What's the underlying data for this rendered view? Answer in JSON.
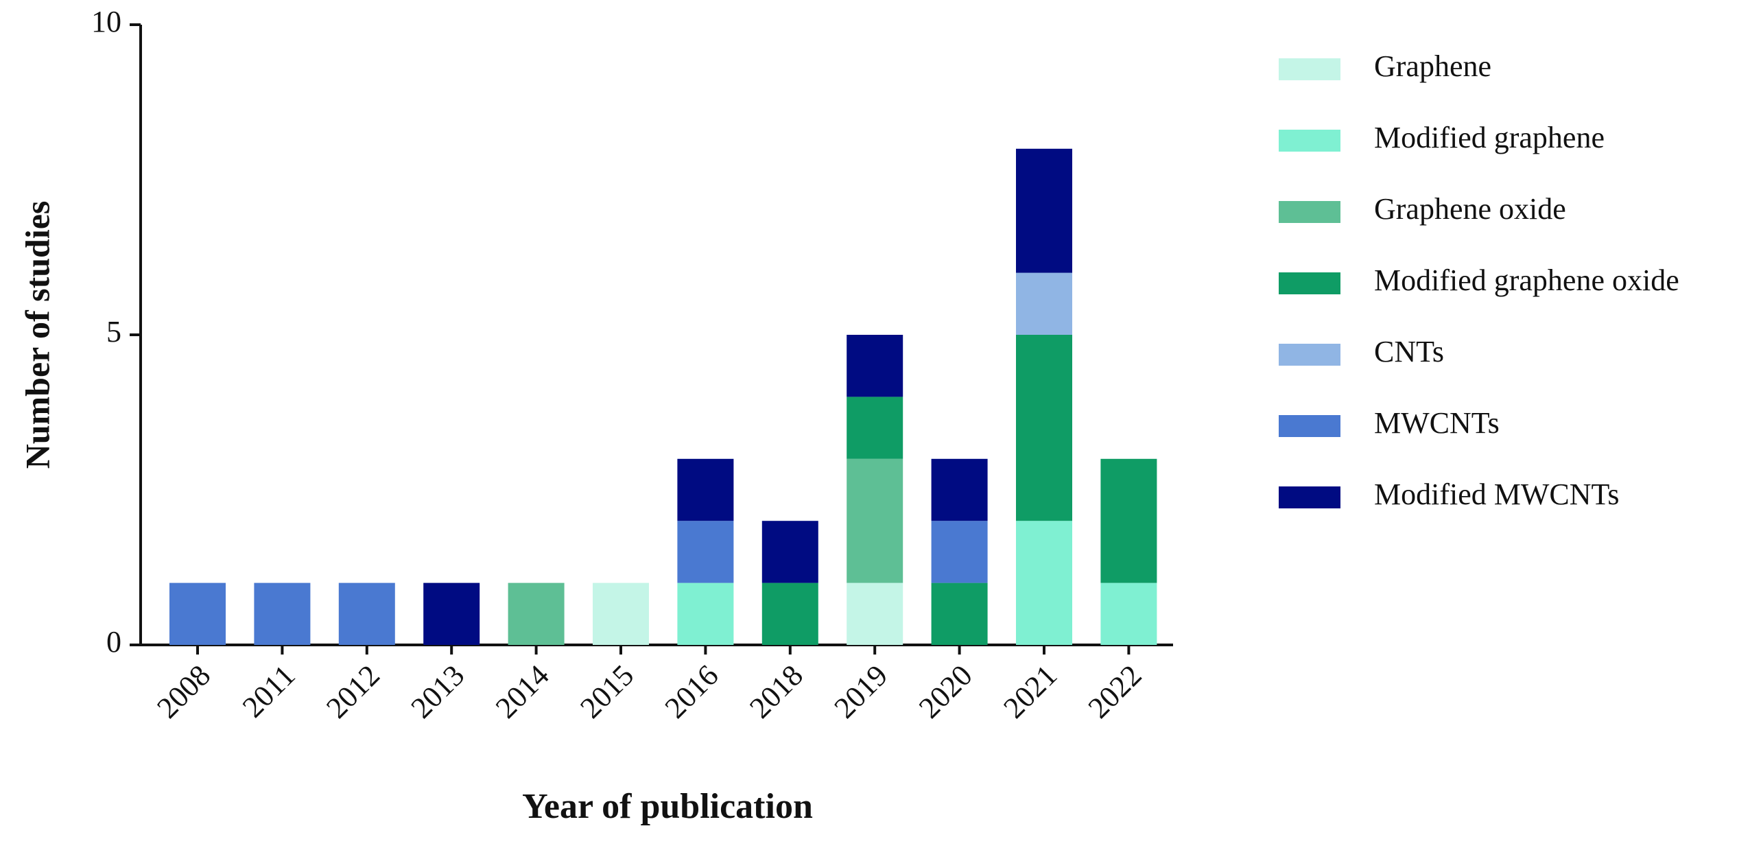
{
  "chart_data": {
    "type": "stacked_bar",
    "xlabel": "Year of publication",
    "ylabel": "Number of studies",
    "categories": [
      "2008",
      "2011",
      "2012",
      "2013",
      "2014",
      "2015",
      "2016",
      "2018",
      "2019",
      "2020",
      "2021",
      "2022"
    ],
    "series": [
      {
        "name": "Graphene",
        "color": "#c4f5e7",
        "values": [
          0,
          0,
          0,
          0,
          0,
          1,
          0,
          0,
          1,
          0,
          0,
          0
        ]
      },
      {
        "name": "Modified graphene",
        "color": "#7ff0d2",
        "values": [
          0,
          0,
          0,
          0,
          0,
          0,
          1,
          0,
          0,
          0,
          2,
          1
        ]
      },
      {
        "name": "Graphene oxide",
        "color": "#5ebf95",
        "values": [
          0,
          0,
          0,
          0,
          1,
          0,
          0,
          0,
          2,
          0,
          0,
          0
        ]
      },
      {
        "name": "Modified graphene oxide",
        "color": "#0f9c65",
        "values": [
          0,
          0,
          0,
          0,
          0,
          0,
          0,
          1,
          1,
          1,
          3,
          2
        ]
      },
      {
        "name": "CNTs",
        "color": "#90b5e4",
        "values": [
          0,
          0,
          0,
          0,
          0,
          0,
          0,
          0,
          0,
          0,
          1,
          0
        ]
      },
      {
        "name": "MWCNTs",
        "color": "#4a79d1",
        "values": [
          1,
          1,
          1,
          0,
          0,
          0,
          1,
          0,
          0,
          1,
          0,
          0
        ]
      },
      {
        "name": "Modified MWCNTs",
        "color": "#000b82",
        "values": [
          0,
          0,
          0,
          1,
          0,
          0,
          1,
          1,
          1,
          1,
          2,
          0
        ]
      }
    ],
    "ylim": [
      0,
      10
    ],
    "yticks": [
      0,
      5,
      10
    ],
    "grid": false,
    "legend": "right"
  }
}
